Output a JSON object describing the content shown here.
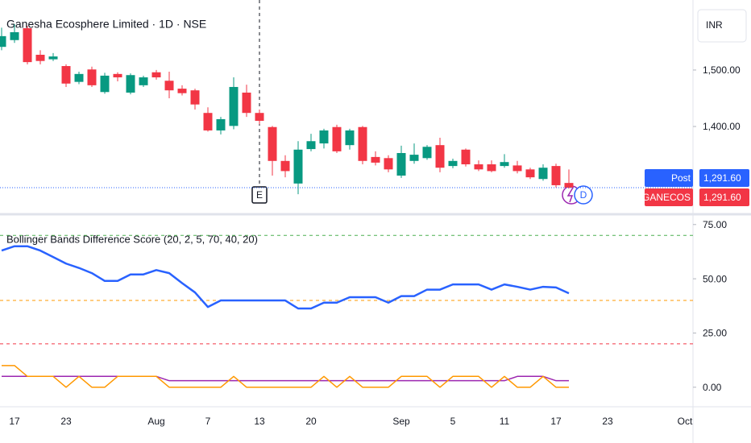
{
  "chart_data": [
    {
      "type": "candlestick",
      "title": "Ganesha Ecosphere Limited · 1D · NSE",
      "currency": "INR",
      "categories": [
        null,
        "17",
        null,
        null,
        null,
        "23",
        null,
        null,
        null,
        null,
        null,
        null,
        "Aug",
        null,
        null,
        null,
        "7",
        null,
        null,
        null,
        "13",
        null,
        null,
        null,
        "20",
        null,
        null,
        null,
        null,
        null,
        null,
        "Sep",
        null,
        null,
        null,
        "5",
        null,
        null,
        null,
        "11",
        null,
        null,
        null,
        "17",
        null,
        null,
        null,
        "23",
        null,
        null,
        null,
        null,
        null,
        "Oct"
      ],
      "open": [
        1541,
        1553,
        1574,
        1527,
        1519,
        1507,
        1479,
        1501,
        1461,
        1493,
        1460,
        1473,
        1496,
        1481,
        1467,
        1464,
        1424,
        1393,
        1401,
        1460,
        1424,
        1399,
        1339,
        1299,
        1360,
        1370,
        1399,
        1367,
        1399,
        1346,
        1344,
        1313,
        1339,
        1344,
        1367,
        1330,
        1359,
        1333,
        1333,
        1330,
        1331,
        1324,
        1307,
        1330,
        1300,
        null,
        null,
        null,
        null,
        null,
        null,
        null,
        null,
        null
      ],
      "high": [
        1575,
        1581,
        1578,
        1535,
        1530,
        1510,
        1497,
        1506,
        1495,
        1496,
        1494,
        1490,
        1500,
        1497,
        1473,
        1467,
        1434,
        1417,
        1487,
        1474,
        1430,
        1401,
        1349,
        1374,
        1387,
        1396,
        1403,
        1396,
        1401,
        1356,
        1349,
        1366,
        1370,
        1367,
        1380,
        1343,
        1361,
        1340,
        1340,
        1351,
        1339,
        1327,
        1333,
        1334,
        1324,
        null,
        null,
        null,
        null,
        null,
        null,
        null,
        null,
        null
      ],
      "low": [
        1535,
        1548,
        1510,
        1510,
        1516,
        1470,
        1475,
        1470,
        1458,
        1480,
        1457,
        1470,
        1483,
        1450,
        1455,
        1430,
        1391,
        1386,
        1395,
        1417,
        1404,
        1313,
        1310,
        1280,
        1356,
        1361,
        1353,
        1359,
        1333,
        1331,
        1319,
        1309,
        1334,
        1341,
        1319,
        1326,
        1329,
        1321,
        1319,
        1327,
        1317,
        1307,
        1304,
        1292,
        1290,
        null,
        null,
        null,
        null,
        null,
        null,
        null,
        null,
        null
      ],
      "close": [
        1560,
        1567,
        1514,
        1516,
        1524,
        1476,
        1493,
        1473,
        1490,
        1487,
        1491,
        1487,
        1487,
        1464,
        1459,
        1439,
        1393,
        1413,
        1470,
        1424,
        1410,
        1339,
        1321,
        1359,
        1374,
        1393,
        1356,
        1393,
        1339,
        1336,
        1324,
        1353,
        1350,
        1364,
        1327,
        1339,
        1333,
        1324,
        1321,
        1337,
        1321,
        1310,
        1327,
        1296,
        1291.6,
        null,
        null,
        null,
        null,
        null,
        null,
        null,
        null,
        null
      ],
      "up_color": "#089981",
      "down_color": "#f23645",
      "ylim": [
        1246,
        1624
      ],
      "yticks": [
        {
          "value": 1500,
          "label": "1,500.00"
        },
        {
          "value": 1400,
          "label": "1,400.00"
        }
      ],
      "price_tags": [
        {
          "name": "Post",
          "label": "1,291.60",
          "value": 1291.6,
          "color": "#2962ff"
        },
        {
          "name": "GANECOS",
          "label": "1,291.60",
          "value": 1291.6,
          "color": "#f23645"
        }
      ]
    },
    {
      "type": "line",
      "title": "Bollinger Bands Difference Score (20, 2, 5, 70, 40, 20)",
      "series": [
        {
          "color": "#2962ff",
          "values": [
            63,
            65,
            65,
            63,
            60,
            57,
            55,
            52.6,
            49,
            49,
            52,
            52,
            54,
            52.6,
            48,
            43.7,
            37,
            40,
            40,
            40,
            40,
            40,
            40,
            36.3,
            36.3,
            39,
            39,
            41.5,
            41.5,
            41.5,
            39,
            42,
            42,
            45,
            45,
            47.4,
            47.4,
            47.4,
            45,
            47.4,
            46.3,
            45,
            46.3,
            46,
            43.3,
            null,
            null,
            null,
            null,
            null,
            null,
            null,
            null,
            null
          ]
        },
        {
          "color": "#ff9800",
          "values": [
            10,
            10,
            5,
            5,
            5,
            0,
            5,
            0,
            0,
            5,
            5,
            5,
            5,
            0,
            0,
            0,
            0,
            0,
            5,
            0,
            0,
            0,
            0,
            0,
            0,
            5,
            0,
            5,
            0,
            0,
            0,
            5,
            5,
            5,
            0,
            5,
            5,
            5,
            0,
            5,
            0,
            0,
            5,
            0,
            0,
            null,
            null,
            null,
            null,
            null,
            null,
            null,
            null,
            null
          ]
        },
        {
          "color": "#9c27b0",
          "values": [
            5,
            5,
            5,
            5,
            5,
            5,
            5,
            5,
            5,
            5,
            5,
            5,
            5,
            3,
            3,
            3,
            3,
            3,
            3,
            3,
            3,
            3,
            3,
            3,
            3,
            3,
            3,
            3,
            3,
            3,
            3,
            3,
            3,
            3,
            3,
            3,
            3,
            3,
            3,
            3,
            5,
            5,
            5,
            3,
            3,
            null,
            null,
            null,
            null,
            null,
            null,
            null,
            null,
            null
          ]
        }
      ],
      "levels": [
        {
          "value": 70,
          "color": "#4caf50"
        },
        {
          "value": 40,
          "color": "#ff9800"
        },
        {
          "value": 20,
          "color": "#f23645"
        }
      ],
      "ylim": [
        -9,
        79
      ],
      "yticks": [
        {
          "value": 75,
          "label": "75.00"
        },
        {
          "value": 50,
          "label": "50.00"
        },
        {
          "value": 25,
          "label": "25.00"
        },
        {
          "value": 0,
          "label": "0.00"
        }
      ]
    }
  ]
}
